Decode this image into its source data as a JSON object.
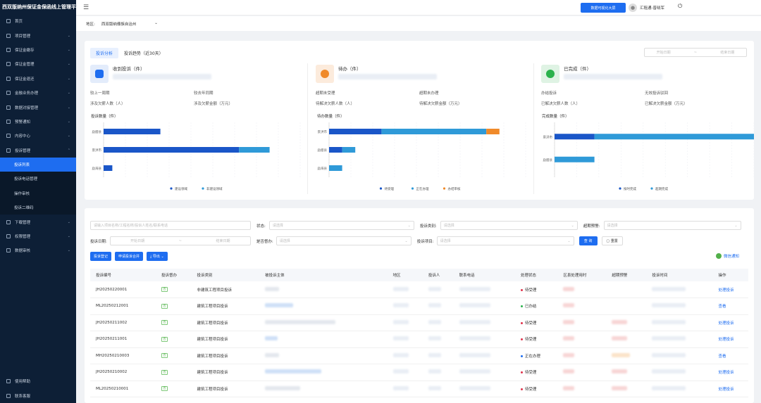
{
  "sidebar": {
    "title": "西双版纳州保证金保函线上管理平台",
    "items": [
      {
        "label": "首页",
        "chev": ""
      },
      {
        "label": "项目管理",
        "chev": "⌄"
      },
      {
        "label": "保证金缴存",
        "chev": "⌄"
      },
      {
        "label": "保证金管理",
        "chev": "⌄"
      },
      {
        "label": "保证金退还",
        "chev": "⌄"
      },
      {
        "label": "金融业务办理",
        "chev": "⌄"
      },
      {
        "label": "数据对接管理",
        "chev": "⌄"
      },
      {
        "label": "预警通知",
        "chev": "⌄"
      },
      {
        "label": "内容中心",
        "chev": "⌄"
      },
      {
        "label": "投诉管理",
        "chev": "⌃"
      }
    ],
    "sub_items": [
      "投诉列表",
      "投诉电话管理",
      "操作审核",
      "投诉二维码"
    ],
    "items2": [
      {
        "label": "下载管理",
        "chev": "⌄"
      },
      {
        "label": "权限管理",
        "chev": "⌄"
      },
      {
        "label": "数据审核",
        "chev": "⌄"
      }
    ],
    "bottom": [
      "使用帮助",
      "联系客服"
    ]
  },
  "topbar": {
    "menu_icon": "☰",
    "big_button": "数据可视化大屏",
    "user_name": "汇租通-普晓军",
    "power_icon": "⏻"
  },
  "region": {
    "label": "地区:",
    "value": "西双版纳傣族自治州",
    "chev": "⌄"
  },
  "stats_panel": {
    "tabs": [
      "投诉分析",
      "投诉趋势（近30天）"
    ],
    "date_start": "开始日期",
    "date_sep": "~",
    "date_end": "结束日期",
    "cards": [
      {
        "title": "收到投诉（件）",
        "rows": [
          "较上一周期",
          "较去年同期",
          "涉及欠薪人数（人）",
          "涉及欠薪金额（万元）"
        ],
        "icon_color": "#1e6df0",
        "bg": "#e3ecfb"
      },
      {
        "title": "待办（件）",
        "rows": [
          "超期未受理",
          "超期未办理",
          "待解决欠薪人数（人）",
          "待解决欠薪金额（万元）"
        ],
        "icon_color": "#f08a2a",
        "bg": "#fcebdc"
      },
      {
        "title": "已完成（件）",
        "rows": [
          "办结投诉",
          "无效投诉驳回",
          "已解决欠薪人数（人）",
          "已解决欠薪金额（万元）"
        ],
        "icon_color": "#2bb24c",
        "bg": "#dff3e4"
      }
    ],
    "chart_titles": [
      "投诉数量（件）",
      "待办数量（件）",
      "完成数量（件）"
    ]
  },
  "chart_data": [
    {
      "type": "bar",
      "title": "投诉数量（件）",
      "categories": [
        "勐腊县",
        "景洪市",
        "勐海县"
      ],
      "series": [
        {
          "name": "建设领域",
          "values": [
            13,
            31,
            2
          ],
          "color": "#1a56c8"
        },
        {
          "name": "非建设领域",
          "values": [
            0,
            7,
            0
          ],
          "color": "#2f9ad8"
        }
      ],
      "xlim": [
        0,
        45
      ],
      "grid": true,
      "legend": "bottom"
    },
    {
      "type": "bar",
      "title": "待办数量（件）",
      "categories": [
        "景洪市",
        "勐腊县",
        "勐海县"
      ],
      "series": [
        {
          "name": "待受理",
          "values": [
            12,
            3,
            0
          ],
          "color": "#1a56c8"
        },
        {
          "name": "正在办理",
          "values": [
            24,
            3,
            3
          ],
          "color": "#2f9ad8"
        },
        {
          "name": "办结审核",
          "values": [
            3,
            0,
            0
          ],
          "color": "#f08a2a"
        }
      ],
      "xlim": [
        0,
        45
      ],
      "grid": true,
      "legend": "bottom"
    },
    {
      "type": "bar",
      "title": "完成数量（件）",
      "categories": [
        "景洪市",
        "勐腊县"
      ],
      "series": [
        {
          "name": "按时完成",
          "values": [
            9,
            0
          ],
          "color": "#1a56c8"
        },
        {
          "name": "超期完成",
          "values": [
            36,
            9
          ],
          "color": "#2f9ad8"
        }
      ],
      "xlim": [
        0,
        45
      ],
      "grid": true,
      "legend": "bottom"
    }
  ],
  "filters": {
    "search_placeholder": "请输入项目名称/工程名称/投诉人姓名/联系电话",
    "status_label": "状态:",
    "status_placeholder": "请选择",
    "type_label": "投诉类别:",
    "type_placeholder": "请选择",
    "overdue_label": "超期预警:",
    "overdue_placeholder": "请选择",
    "date_label": "投诉日期:",
    "date_start": "开始日期",
    "date_end": "结束日期",
    "supervise_label": "是否督办:",
    "supervise_placeholder": "请选择",
    "item_label": "投诉项目:",
    "item_placeholder": "请选择",
    "query_btn": "查 询",
    "reset_btn": "重置"
  },
  "actions": {
    "register": "投诉登记",
    "merge": "申请投诉合并",
    "export": "导出",
    "wechat": "微信通知"
  },
  "table": {
    "headers": [
      "投诉编号",
      "投诉督办",
      "投诉类别",
      "被投诉主体",
      "地区",
      "投诉人",
      "联系电话",
      "处理状态",
      "区县处理用时",
      "超期预警",
      "投诉时间",
      "操作"
    ],
    "rows": [
      {
        "id": "JH20250220001",
        "badge": "否",
        "cat": "非建筑工程项目投诉",
        "status": "待受理",
        "status_color": "#e0334c",
        "op": "处理投诉"
      },
      {
        "id": "ML20250212001",
        "badge": "否",
        "cat": "建筑工程项目投诉",
        "status": "已办结",
        "status_color": "#2bb24c",
        "op": "查看"
      },
      {
        "id": "JH20250211002",
        "badge": "否",
        "cat": "建筑工程项目投诉",
        "status": "待受理",
        "status_color": "#e0334c",
        "op": "处理投诉"
      },
      {
        "id": "JH20250211001",
        "badge": "否",
        "cat": "建筑工程项目投诉",
        "status": "待受理",
        "status_color": "#e0334c",
        "op": "处理投诉"
      },
      {
        "id": "MH20250210003",
        "badge": "否",
        "cat": "建筑工程项目投诉",
        "status": "正在办理",
        "status_color": "#1e6df0",
        "op": "查看"
      },
      {
        "id": "JH20250210002",
        "badge": "否",
        "cat": "建筑工程项目投诉",
        "status": "待受理",
        "status_color": "#e0334c",
        "op": "处理投诉"
      },
      {
        "id": "ML20250210001",
        "badge": "否",
        "cat": "建筑工程项目投诉",
        "status": "待受理",
        "status_color": "#e0334c",
        "op": "处理投诉"
      }
    ]
  }
}
